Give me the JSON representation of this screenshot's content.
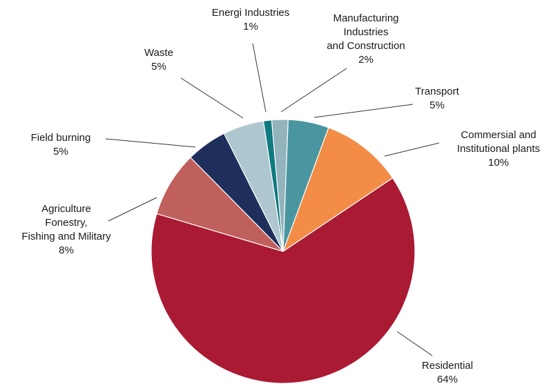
{
  "chart_data": {
    "type": "pie",
    "title": "",
    "legend": "none",
    "slices": [
      {
        "label_lines": [
          "Manufacturing",
          "Industries",
          "and Construction"
        ],
        "value_label": "2%",
        "value": 2,
        "color": "#93b3bd"
      },
      {
        "label_lines": [
          "Transport"
        ],
        "value_label": "5%",
        "value": 5,
        "color": "#4a96a0"
      },
      {
        "label_lines": [
          "Commersial and",
          "Institutional plants"
        ],
        "value_label": "10%",
        "value": 10,
        "color": "#f38c47"
      },
      {
        "label_lines": [
          "Residential"
        ],
        "value_label": "64%",
        "value": 64,
        "color": "#aa1a33"
      },
      {
        "label_lines": [
          "Agriculture",
          "Fonestry,",
          "Fishing and Military"
        ],
        "value_label": "8%",
        "value": 8,
        "color": "#bf605c"
      },
      {
        "label_lines": [
          "Field burning"
        ],
        "value_label": "5%",
        "value": 5,
        "color": "#1f2f5c"
      },
      {
        "label_lines": [
          "Waste"
        ],
        "value_label": "5%",
        "value": 5,
        "color": "#aec7cf"
      },
      {
        "label_lines": [
          "Energi Industries"
        ],
        "value_label": "1%",
        "value": 1,
        "color": "#0f7a80"
      }
    ]
  }
}
